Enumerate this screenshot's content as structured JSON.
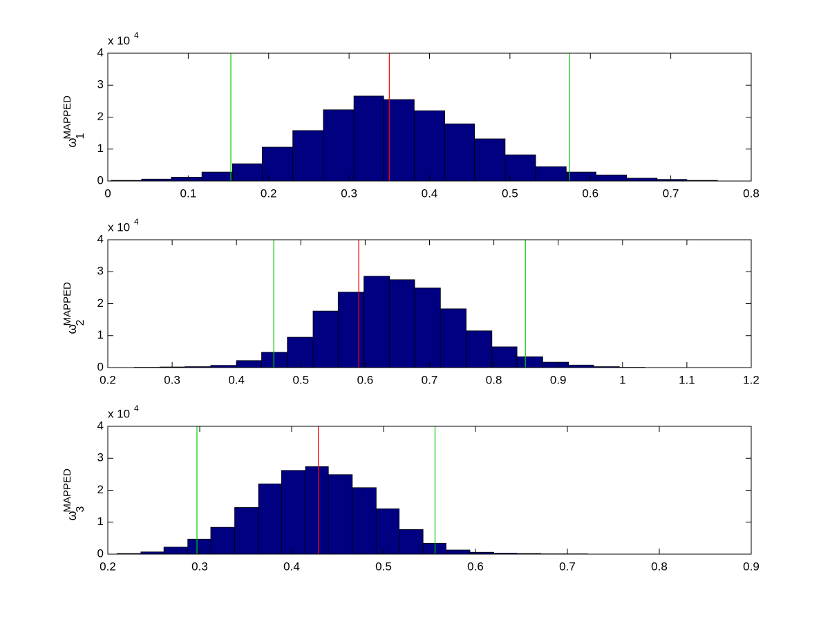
{
  "chart_data": [
    {
      "type": "histogram",
      "ylabel": {
        "symbol": "ω",
        "subscript": "1",
        "superscript": "MAPPED"
      },
      "scale_label": {
        "base": "x 10",
        "exponent": "4"
      },
      "bins": [
        0.004,
        0.042,
        0.079,
        0.117,
        0.155,
        0.192,
        0.23,
        0.268,
        0.306,
        0.343,
        0.381,
        0.419,
        0.456,
        0.494,
        0.532,
        0.57,
        0.607,
        0.645,
        0.683,
        0.72,
        0.758
      ],
      "values": [
        0.02,
        0.06,
        0.12,
        0.28,
        0.54,
        1.06,
        1.58,
        2.23,
        2.66,
        2.55,
        2.2,
        1.79,
        1.32,
        0.82,
        0.45,
        0.28,
        0.19,
        0.09,
        0.05,
        0.02
      ],
      "color": "#000080",
      "edgecolor": "#000000",
      "xlim": [
        0,
        0.8
      ],
      "xticks": [
        0,
        0.1,
        0.2,
        0.3,
        0.4,
        0.5,
        0.6,
        0.7,
        0.8
      ],
      "ylim": [
        0,
        4
      ],
      "yticks": [
        0,
        1,
        2,
        3,
        4
      ],
      "vlines": [
        {
          "x": 0.153,
          "color": "#00cc00"
        },
        {
          "x": 0.35,
          "color": "#ff0000"
        },
        {
          "x": 0.574,
          "color": "#00cc00"
        }
      ]
    },
    {
      "type": "histogram",
      "ylabel": {
        "symbol": "ω",
        "subscript": "2",
        "superscript": "MAPPED"
      },
      "scale_label": {
        "base": "x 10",
        "exponent": "4"
      },
      "bins": [
        0.241,
        0.281,
        0.32,
        0.36,
        0.4,
        0.439,
        0.479,
        0.519,
        0.558,
        0.598,
        0.638,
        0.677,
        0.717,
        0.757,
        0.797,
        0.836,
        0.876,
        0.916,
        0.955,
        0.995,
        1.035
      ],
      "values": [
        0.01,
        0.02,
        0.03,
        0.07,
        0.22,
        0.48,
        0.95,
        1.77,
        2.36,
        2.86,
        2.75,
        2.49,
        1.84,
        1.15,
        0.65,
        0.34,
        0.17,
        0.08,
        0.03,
        0.01
      ],
      "color": "#000080",
      "edgecolor": "#000000",
      "xlim": [
        0.2,
        1.2
      ],
      "xticks": [
        0.2,
        0.3,
        0.4,
        0.5,
        0.6,
        0.7,
        0.8,
        0.9,
        1,
        1.1,
        1.2
      ],
      "ylim": [
        0,
        4
      ],
      "yticks": [
        0,
        1,
        2,
        3,
        4
      ],
      "vlines": [
        {
          "x": 0.458,
          "color": "#00cc00"
        },
        {
          "x": 0.59,
          "color": "#ff0000"
        },
        {
          "x": 0.849,
          "color": "#00cc00"
        }
      ]
    },
    {
      "type": "histogram",
      "ylabel": {
        "symbol": "ω",
        "subscript": "3",
        "superscript": "MAPPED"
      },
      "scale_label": {
        "base": "x 10",
        "exponent": "4"
      },
      "bins": [
        0.21,
        0.236,
        0.261,
        0.287,
        0.312,
        0.338,
        0.364,
        0.389,
        0.415,
        0.44,
        0.466,
        0.492,
        0.517,
        0.543,
        0.568,
        0.594,
        0.62,
        0.645,
        0.671,
        0.696,
        0.722
      ],
      "values": [
        0.02,
        0.07,
        0.22,
        0.47,
        0.84,
        1.46,
        2.2,
        2.62,
        2.74,
        2.49,
        2.08,
        1.42,
        0.77,
        0.34,
        0.13,
        0.06,
        0.03,
        0.02,
        0.01,
        0.01
      ],
      "color": "#000080",
      "edgecolor": "#000000",
      "xlim": [
        0.2,
        0.9
      ],
      "xticks": [
        0.2,
        0.3,
        0.4,
        0.5,
        0.6,
        0.7,
        0.8,
        0.9
      ],
      "ylim": [
        0,
        4
      ],
      "yticks": [
        0,
        1,
        2,
        3,
        4
      ],
      "vlines": [
        {
          "x": 0.297,
          "color": "#00cc00"
        },
        {
          "x": 0.429,
          "color": "#ff0000"
        },
        {
          "x": 0.556,
          "color": "#00cc00"
        }
      ]
    }
  ]
}
